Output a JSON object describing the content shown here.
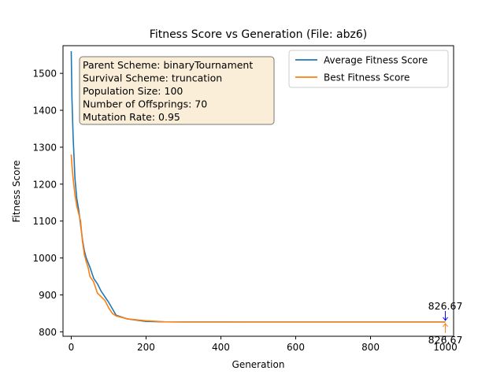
{
  "chart_data": {
    "type": "line",
    "title": "Fitness Score vs Generation (File: abz6)",
    "xlabel": "Generation",
    "ylabel": "Fitness Score",
    "xlim": [
      -22,
      1022
    ],
    "ylim": [
      788,
      1575
    ],
    "xticks": [
      0,
      200,
      400,
      600,
      800,
      1000
    ],
    "yticks": [
      800,
      900,
      1000,
      1100,
      1200,
      1300,
      1400,
      1500
    ],
    "legend_position": "top-right",
    "info_lines": [
      "Parent Scheme: binaryTournament",
      "Survival Scheme: truncation",
      "Population Size: 100",
      "Number of Offsprings: 70",
      "Mutation Rate: 0.95"
    ],
    "series": [
      {
        "name": "Average Fitness Score",
        "color": "#1f77b4",
        "x": [
          0,
          2,
          5,
          10,
          15,
          20,
          25,
          30,
          35,
          40,
          50,
          60,
          70,
          80,
          90,
          100,
          120,
          150,
          200,
          250,
          300,
          400,
          500,
          600,
          700,
          800,
          900,
          1000
        ],
        "y": [
          1560,
          1430,
          1330,
          1215,
          1160,
          1130,
          1090,
          1050,
          1020,
          1000,
          975,
          945,
          930,
          910,
          895,
          880,
          845,
          835,
          828,
          826.9,
          826.8,
          826.7,
          826.67,
          826.67,
          826.67,
          826.67,
          826.67,
          826.67
        ]
      },
      {
        "name": "Best Fitness Score",
        "color": "#ff7f0e",
        "x": [
          0,
          2,
          5,
          10,
          15,
          20,
          25,
          30,
          35,
          40,
          45,
          50,
          60,
          70,
          80,
          90,
          100,
          110,
          120,
          150,
          200,
          250,
          300,
          400,
          500,
          600,
          700,
          800,
          900,
          1000
        ],
        "y": [
          1280,
          1250,
          1215,
          1170,
          1140,
          1120,
          1100,
          1045,
          1010,
          990,
          975,
          950,
          935,
          905,
          895,
          885,
          865,
          850,
          843,
          835,
          830,
          827,
          826.67,
          826.67,
          826.67,
          826.67,
          826.67,
          826.67,
          826.67,
          826.67
        ]
      }
    ],
    "annotations": [
      {
        "text": "826.67",
        "x": 1000,
        "y": 826.67,
        "color": "#0000ff",
        "placement": "above"
      },
      {
        "text": "826.67",
        "x": 1000,
        "y": 826.67,
        "color": "#ff7f0e",
        "placement": "below"
      }
    ]
  }
}
